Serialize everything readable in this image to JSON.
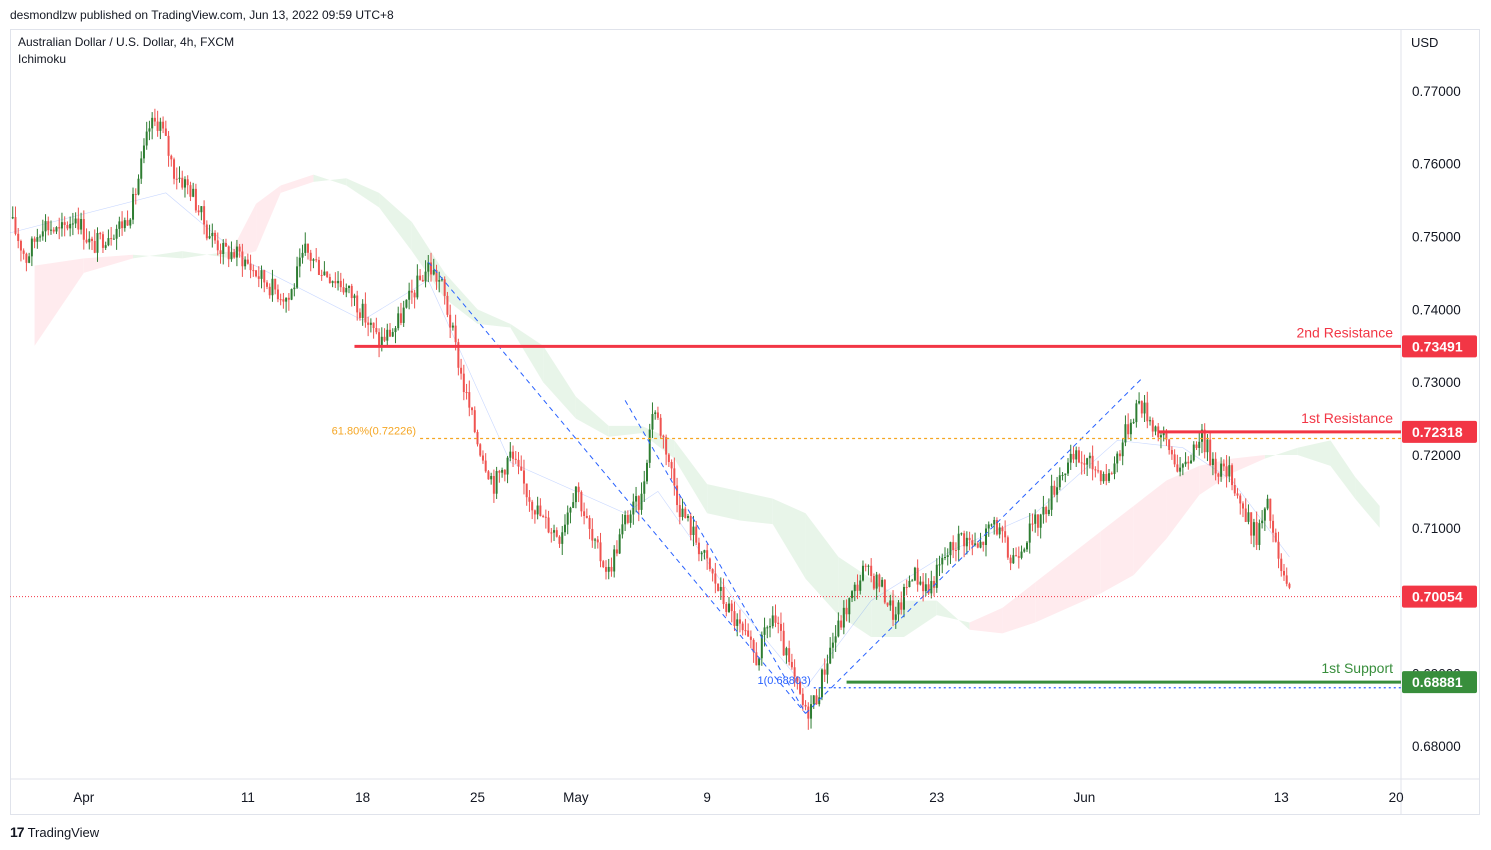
{
  "header": {
    "published": "desmondlzw published on TradingView.com, Jun 13, 2022 09:59 UTC+8"
  },
  "footer": {
    "brand": "TradingView",
    "logo_glyph": "17"
  },
  "chart_data": {
    "type": "candlestick",
    "symbol_line": "Australian Dollar / U.S. Dollar, 4h, FXCM",
    "indicator": "Ichimoku",
    "currency": "USD",
    "ylim": [
      0.6755,
      0.7785
    ],
    "y_ticks": [
      "0.77000",
      "0.76000",
      "0.75000",
      "0.74000",
      "0.73000",
      "0.72000",
      "0.71000",
      "0.70000",
      "0.69000",
      "0.68000"
    ],
    "x_ticks": [
      {
        "label": "Apr",
        "day": 0
      },
      {
        "label": "11",
        "day": 10
      },
      {
        "label": "18",
        "day": 17
      },
      {
        "label": "25",
        "day": 24
      },
      {
        "label": "May",
        "day": 30
      },
      {
        "label": "9",
        "day": 38
      },
      {
        "label": "16",
        "day": 45
      },
      {
        "label": "23",
        "day": 52
      },
      {
        "label": "Jun",
        "day": 61
      },
      {
        "label": "13",
        "day": 73
      },
      {
        "label": "20",
        "day": 80
      }
    ],
    "x_day_range": [
      -4.5,
      80.3
    ],
    "levels": [
      {
        "name": "2nd Resistance",
        "value": 0.73491,
        "label": "0.73491",
        "color": "#f23645",
        "start_day": 16.5
      },
      {
        "name": "1st Resistance",
        "value": 0.72318,
        "label": "0.72318",
        "color": "#f23645",
        "start_day": 65.5
      },
      {
        "name": "1st Support",
        "value": 0.68881,
        "label": "0.68881",
        "color": "#388e3c",
        "start_day": 46.5
      }
    ],
    "current_price": {
      "value": 0.70054,
      "label": "0.70054",
      "color": "#f23645"
    },
    "fib": {
      "label_618": "61.80%(0.72226)",
      "value_618": 0.72226,
      "start_day_618": 20.5,
      "label_1": "1(0.68803)",
      "value_1": 0.68803,
      "start_day_1": 44.5,
      "color_618": "#f5a623",
      "color_1": "#2962ff"
    },
    "trendlines": [
      {
        "from": [
          21.0,
          0.7465
        ],
        "to": [
          44.0,
          0.6845
        ]
      },
      {
        "from": [
          33.0,
          0.7275
        ],
        "to": [
          44.0,
          0.6845
        ]
      },
      {
        "from": [
          44.0,
          0.6845
        ],
        "to": [
          64.5,
          0.7305
        ]
      }
    ],
    "colors": {
      "up": "#26a69a",
      "up_ichimoku": "#2e7d32",
      "down": "#ef5350",
      "cloud_bull": "#e8f5e9",
      "cloud_bear": "#ffebee"
    },
    "anchors": [
      [
        -4.5,
        0.7525
      ],
      [
        -3.5,
        0.747
      ],
      [
        -2.5,
        0.752
      ],
      [
        -1.5,
        0.7505
      ],
      [
        -0.5,
        0.753
      ],
      [
        0.5,
        0.7485
      ],
      [
        1.5,
        0.7505
      ],
      [
        2.5,
        0.752
      ],
      [
        3.0,
        0.7545
      ],
      [
        4.0,
        0.765
      ],
      [
        4.6,
        0.766
      ],
      [
        5.5,
        0.759
      ],
      [
        6.5,
        0.7565
      ],
      [
        7.5,
        0.751
      ],
      [
        8.5,
        0.748
      ],
      [
        9.5,
        0.7475
      ],
      [
        10.5,
        0.745
      ],
      [
        11.5,
        0.743
      ],
      [
        12.5,
        0.7415
      ],
      [
        13.5,
        0.748
      ],
      [
        14.5,
        0.7455
      ],
      [
        15.5,
        0.744
      ],
      [
        16.5,
        0.7415
      ],
      [
        17.0,
        0.7395
      ],
      [
        18.0,
        0.7355
      ],
      [
        19.0,
        0.7375
      ],
      [
        20.0,
        0.742
      ],
      [
        21.0,
        0.746
      ],
      [
        21.8,
        0.7435
      ],
      [
        22.5,
        0.7365
      ],
      [
        23.2,
        0.729
      ],
      [
        24.0,
        0.722
      ],
      [
        25.0,
        0.716
      ],
      [
        26.0,
        0.72
      ],
      [
        27.0,
        0.715
      ],
      [
        28.0,
        0.711
      ],
      [
        29.0,
        0.709
      ],
      [
        30.0,
        0.716
      ],
      [
        31.0,
        0.708
      ],
      [
        32.0,
        0.704
      ],
      [
        33.0,
        0.711
      ],
      [
        34.0,
        0.714
      ],
      [
        34.7,
        0.727
      ],
      [
        35.5,
        0.721
      ],
      [
        36.3,
        0.713
      ],
      [
        37.0,
        0.71
      ],
      [
        38.0,
        0.705
      ],
      [
        39.0,
        0.7
      ],
      [
        40.0,
        0.696
      ],
      [
        41.0,
        0.692
      ],
      [
        42.0,
        0.698
      ],
      [
        43.0,
        0.691
      ],
      [
        44.0,
        0.6845
      ],
      [
        44.7,
        0.687
      ],
      [
        45.5,
        0.6935
      ],
      [
        46.5,
        0.699
      ],
      [
        47.5,
        0.704
      ],
      [
        48.5,
        0.7025
      ],
      [
        49.5,
        0.6975
      ],
      [
        50.5,
        0.704
      ],
      [
        51.5,
        0.7015
      ],
      [
        52.5,
        0.706
      ],
      [
        53.5,
        0.709
      ],
      [
        54.5,
        0.707
      ],
      [
        55.5,
        0.711
      ],
      [
        56.5,
        0.7055
      ],
      [
        57.5,
        0.709
      ],
      [
        58.5,
        0.712
      ],
      [
        59.5,
        0.7175
      ],
      [
        60.5,
        0.7195
      ],
      [
        61.5,
        0.7185
      ],
      [
        62.5,
        0.717
      ],
      [
        63.5,
        0.723
      ],
      [
        64.3,
        0.7275
      ],
      [
        65.0,
        0.725
      ],
      [
        66.0,
        0.7215
      ],
      [
        67.0,
        0.7175
      ],
      [
        68.0,
        0.723
      ],
      [
        69.0,
        0.7185
      ],
      [
        70.0,
        0.717
      ],
      [
        70.8,
        0.7115
      ],
      [
        71.5,
        0.709
      ],
      [
        72.2,
        0.713
      ],
      [
        72.8,
        0.7055
      ],
      [
        73.5,
        0.7005
      ]
    ],
    "tenkan": [
      [
        -4.5,
        0.7505
      ],
      [
        5,
        0.756
      ],
      [
        10,
        0.7465
      ],
      [
        17,
        0.7385
      ],
      [
        21,
        0.744
      ],
      [
        26,
        0.719
      ],
      [
        33,
        0.712
      ],
      [
        35,
        0.715
      ],
      [
        40,
        0.699
      ],
      [
        44,
        0.688
      ],
      [
        48,
        0.7
      ],
      [
        53,
        0.707
      ],
      [
        58,
        0.712
      ],
      [
        63,
        0.722
      ],
      [
        67,
        0.721
      ],
      [
        70,
        0.7165
      ],
      [
        73.5,
        0.706
      ]
    ],
    "cloud": [
      [
        -3,
        0.735,
        0.746
      ],
      [
        0,
        0.745,
        0.747
      ],
      [
        3,
        0.747,
        0.7475
      ],
      [
        6,
        0.748,
        0.747
      ],
      [
        9,
        0.747,
        0.748
      ],
      [
        10.5,
        0.748,
        0.7545
      ],
      [
        12,
        0.756,
        0.757
      ],
      [
        14,
        0.7575,
        0.7585
      ],
      [
        16,
        0.758,
        0.757
      ],
      [
        18,
        0.756,
        0.754
      ],
      [
        20,
        0.752,
        0.748
      ],
      [
        22,
        0.745,
        0.7415
      ],
      [
        24,
        0.74,
        0.738
      ],
      [
        26,
        0.738,
        0.7375
      ],
      [
        28,
        0.735,
        0.73
      ],
      [
        30,
        0.728,
        0.725
      ],
      [
        32,
        0.724,
        0.7225
      ],
      [
        34,
        0.724,
        0.723
      ],
      [
        36,
        0.722,
        0.7195
      ],
      [
        38,
        0.716,
        0.712
      ],
      [
        40,
        0.715,
        0.711
      ],
      [
        42,
        0.714,
        0.7105
      ],
      [
        44,
        0.712,
        0.703
      ],
      [
        46,
        0.706,
        0.698
      ],
      [
        48,
        0.703,
        0.695
      ],
      [
        50,
        0.7,
        0.695
      ],
      [
        52,
        0.7,
        0.698
      ],
      [
        54,
        0.696,
        0.697
      ],
      [
        56,
        0.6955,
        0.699
      ],
      [
        58,
        0.697,
        0.7025
      ],
      [
        60,
        0.699,
        0.706
      ],
      [
        62,
        0.701,
        0.7095
      ],
      [
        64,
        0.7035,
        0.713
      ],
      [
        66,
        0.7085,
        0.7165
      ],
      [
        68,
        0.7145,
        0.7185
      ],
      [
        70,
        0.7175,
        0.7195
      ],
      [
        72,
        0.7195,
        0.72
      ],
      [
        74,
        0.721,
        0.72
      ],
      [
        76,
        0.722,
        0.7185
      ],
      [
        77.5,
        0.717,
        0.714
      ],
      [
        79,
        0.713,
        0.71
      ]
    ]
  }
}
